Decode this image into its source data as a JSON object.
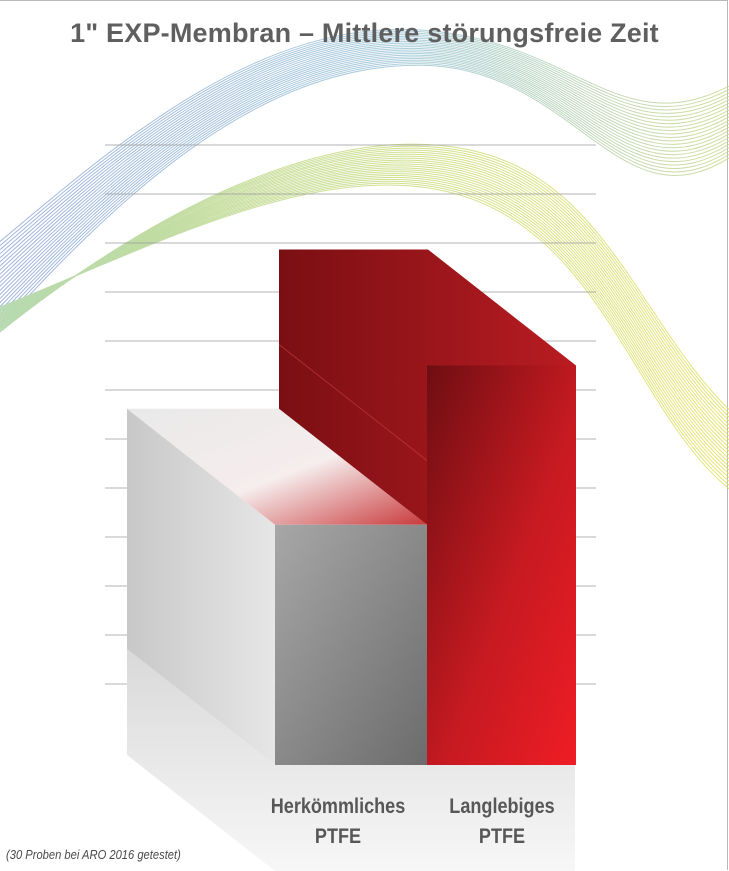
{
  "chart_data": {
    "type": "bar",
    "title": "1\" EXP-Membran – Mittlere störungsfreie Zeit",
    "categories": [
      "Herkömmliches PTFE",
      "Langlebiges PTFE"
    ],
    "category_lines": [
      [
        "Herkömmliches",
        "PTFE"
      ],
      [
        "Langlebiges",
        "PTFE"
      ]
    ],
    "values": [
      4.25,
      7.5
    ],
    "ylim": [
      0,
      13
    ],
    "grid": true,
    "xlabel": "",
    "ylabel": "",
    "footnote": "(30 Proben bei ARO 2016 getestet)",
    "colors": {
      "conventional": "#8a8a8a",
      "long_life": "#e11d24",
      "back_red": "#a81a20",
      "text": "#5a5a5a"
    }
  }
}
